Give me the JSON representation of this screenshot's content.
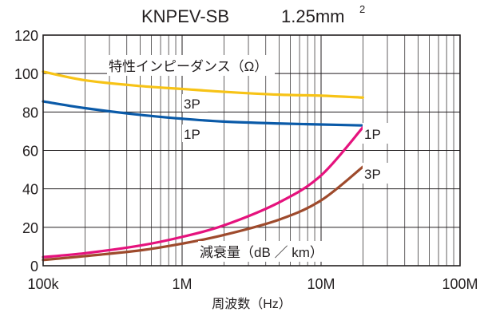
{
  "chart_data": {
    "type": "line",
    "title": "KNPEV-SB",
    "title_size": "1.25mm",
    "title_size_sup": "2",
    "xlabel": "周波数（Hz）",
    "x_scale": "log",
    "xlim": [
      100000,
      100000000
    ],
    "ylim": [
      0,
      120
    ],
    "x_ticks": [
      {
        "value": 100000,
        "label": "100k"
      },
      {
        "value": 1000000,
        "label": "1M"
      },
      {
        "value": 10000000,
        "label": "10M"
      },
      {
        "value": 100000000,
        "label": "100M"
      }
    ],
    "y_ticks": [
      {
        "value": 0,
        "label": "0"
      },
      {
        "value": 20,
        "label": "20"
      },
      {
        "value": 40,
        "label": "40"
      },
      {
        "value": 60,
        "label": "60"
      },
      {
        "value": 80,
        "label": "80"
      },
      {
        "value": 100,
        "label": "100"
      },
      {
        "value": 120,
        "label": "120"
      }
    ],
    "grid": true,
    "series": [
      {
        "name": "3P",
        "group": "特性インピーダンス（Ω）",
        "color": "#f7c316",
        "points": [
          [
            100000,
            101
          ],
          [
            200000,
            96.5
          ],
          [
            500000,
            93.5
          ],
          [
            1000000,
            92
          ],
          [
            2000000,
            90.5
          ],
          [
            5000000,
            89
          ],
          [
            10000000,
            88.5
          ],
          [
            20000000,
            87.5
          ]
        ]
      },
      {
        "name": "1P",
        "group": "特性インピーダンス（Ω）",
        "color": "#0a5aa8",
        "points": [
          [
            100000,
            85.5
          ],
          [
            200000,
            82
          ],
          [
            500000,
            78.5
          ],
          [
            1000000,
            76.5
          ],
          [
            2000000,
            75
          ],
          [
            5000000,
            74
          ],
          [
            10000000,
            73.5
          ],
          [
            20000000,
            73
          ]
        ]
      },
      {
        "name": "1P",
        "group": "減衰量（dB ／ km）",
        "color": "#e5127d",
        "points": [
          [
            100000,
            4.5
          ],
          [
            200000,
            6.5
          ],
          [
            500000,
            10.5
          ],
          [
            1000000,
            15
          ],
          [
            2000000,
            21
          ],
          [
            5000000,
            33
          ],
          [
            10000000,
            47
          ],
          [
            20000000,
            72
          ]
        ]
      },
      {
        "name": "3P",
        "group": "減衰量（dB ／ km）",
        "color": "#9e4a2c",
        "points": [
          [
            100000,
            3
          ],
          [
            200000,
            5
          ],
          [
            500000,
            8
          ],
          [
            1000000,
            11.5
          ],
          [
            2000000,
            16
          ],
          [
            5000000,
            24
          ],
          [
            10000000,
            34
          ],
          [
            20000000,
            51.5
          ]
        ]
      }
    ],
    "annotations": {
      "impedance": "特性インピーダンス（Ω）",
      "attenuation": "減衰量（dB ／ km）",
      "imp_3p": "3P",
      "imp_1p": "1P",
      "att_1p": "1P",
      "att_3p": "3P"
    }
  }
}
